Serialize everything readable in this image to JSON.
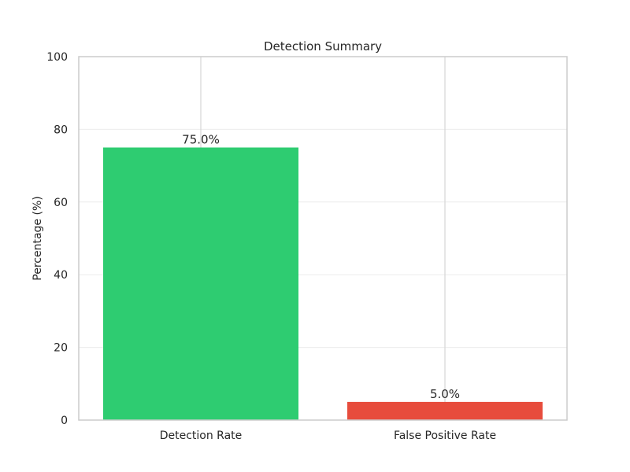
{
  "chart_data": {
    "type": "bar",
    "title": "Detection Summary",
    "xlabel": "",
    "ylabel": "Percentage (%)",
    "categories": [
      "Detection Rate",
      "False Positive Rate"
    ],
    "values": [
      75.0,
      5.0
    ],
    "data_labels": [
      "75.0%",
      "5.0%"
    ],
    "bar_colors": [
      "#2ecc71",
      "#e74c3c"
    ],
    "ylim": [
      0,
      100
    ],
    "yticks": [
      0,
      20,
      40,
      60,
      80,
      100
    ],
    "ytick_labels": [
      "0",
      "20",
      "40",
      "60",
      "80",
      "100"
    ],
    "grid": "on",
    "legend": "none"
  }
}
